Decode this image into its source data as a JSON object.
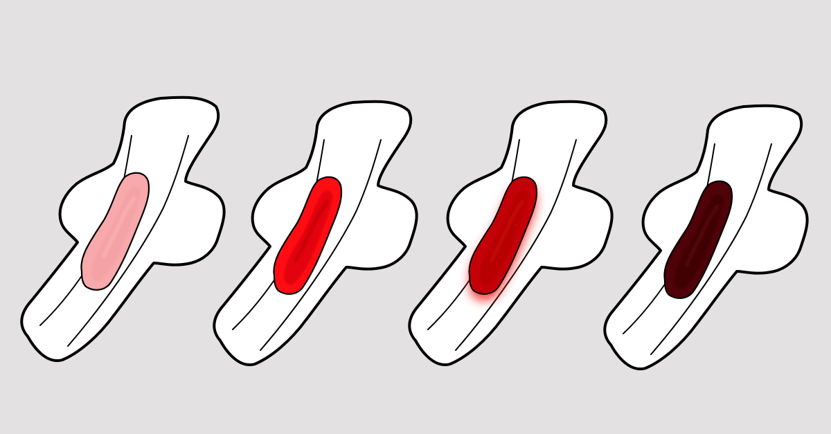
{
  "background": "#e3e1e2",
  "pads": [
    {
      "name": "pad-light-pink-stain",
      "stain_colors": [
        "#f7a9ab",
        "#f4a0a3",
        "#fbb8ba"
      ],
      "glow": false
    },
    {
      "name": "pad-bright-red-stain",
      "stain_colors": [
        "#ff0d12",
        "#d90007",
        "#b80006"
      ],
      "glow": false
    },
    {
      "name": "pad-dark-red-stain-glow",
      "stain_colors": [
        "#c40008",
        "#b30006",
        "#cc0a0f"
      ],
      "glow": true
    },
    {
      "name": "pad-dark-brown-stain",
      "stain_colors": [
        "#4f0208",
        "#3a0105",
        "#5e0a0f"
      ],
      "glow": false
    }
  ],
  "style": {
    "pad_fill": "#ffffff",
    "outline": "#000000"
  }
}
